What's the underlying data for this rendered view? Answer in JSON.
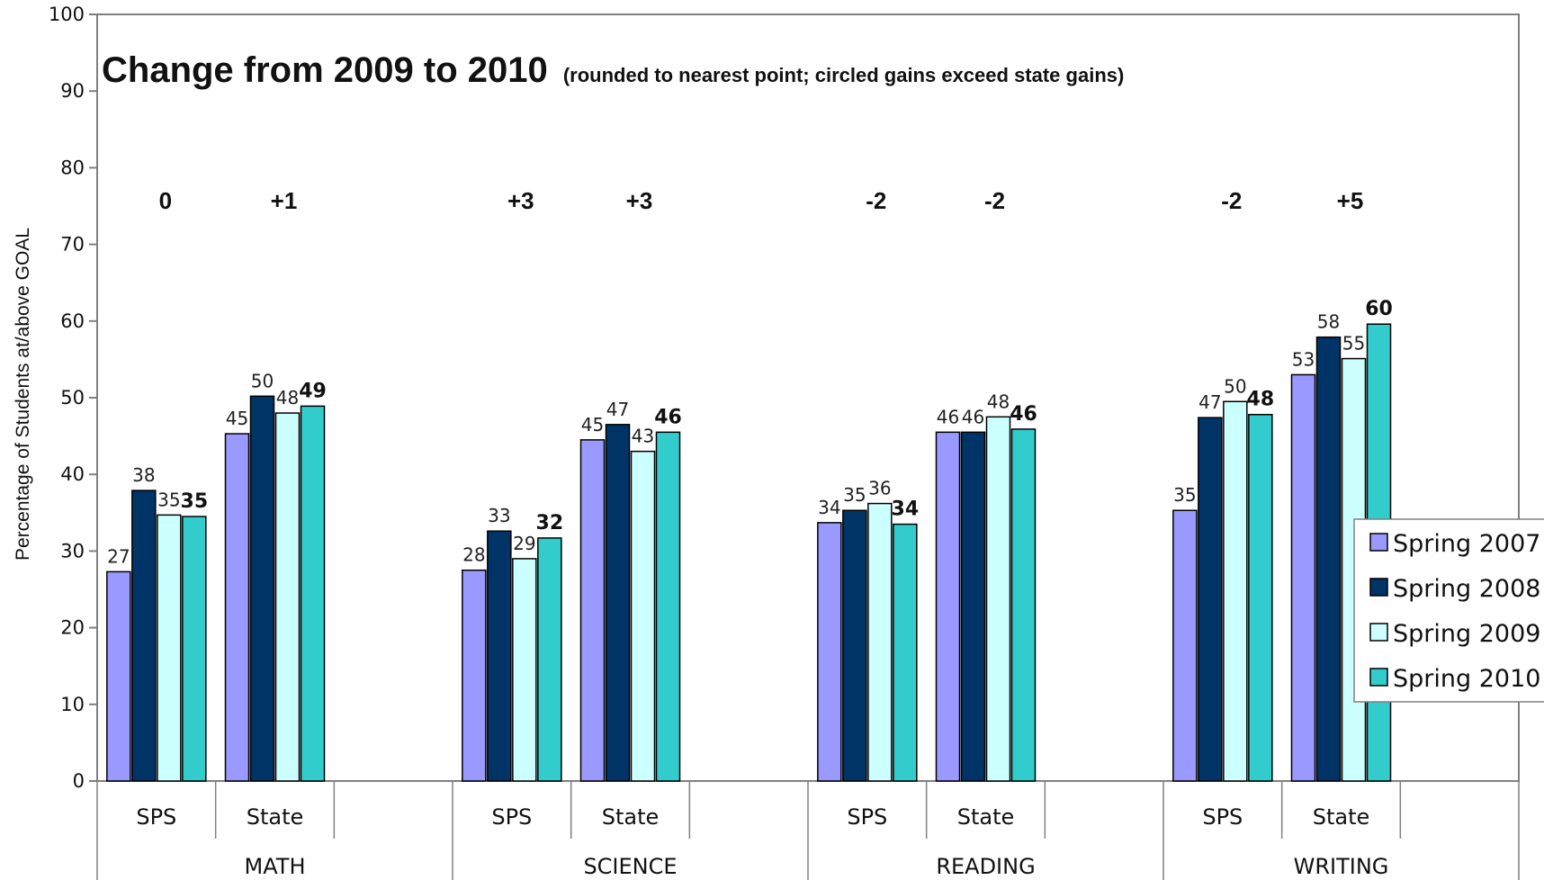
{
  "chart_data": {
    "type": "bar",
    "title": "Change from 2009 to 2010",
    "subtitle": "(rounded to nearest point; circled gains exceed state gains)",
    "ylabel": "Percentage of Students at/above GOAL",
    "ylim": [
      0,
      100
    ],
    "yticks": [
      "0",
      "10",
      "20",
      "30",
      "40",
      "50",
      "60",
      "70",
      "80",
      "90",
      "100"
    ],
    "grid": false,
    "legend_position": "right",
    "subjects": [
      "MATH",
      "SCIENCE",
      "READING",
      "WRITING"
    ],
    "groups": [
      "SPS",
      "State"
    ],
    "categories": [
      "MATH SPS",
      "MATH State",
      "SCIENCE SPS",
      "SCIENCE State",
      "READING SPS",
      "READING State",
      "WRITING SPS",
      "WRITING State"
    ],
    "changes": [
      "0",
      "+1",
      "+3",
      "+3",
      "-2",
      "-2",
      "-2",
      "+5"
    ],
    "series": [
      {
        "name": "Spring 2007",
        "color": "#9999ff",
        "values": [
          27.3,
          45.3,
          27.5,
          44.5,
          33.7,
          45.5,
          35.3,
          53.0
        ],
        "labels": [
          "27",
          "45",
          "28",
          "45",
          "34",
          "46",
          "35",
          "53"
        ]
      },
      {
        "name": "Spring 2008",
        "color": "#003366",
        "values": [
          37.9,
          50.2,
          32.6,
          46.5,
          35.3,
          45.5,
          47.4,
          57.9
        ],
        "labels": [
          "38",
          "50",
          "33",
          "47",
          "35",
          "46",
          "47",
          "58"
        ]
      },
      {
        "name": "Spring 2009",
        "color": "#ccffff",
        "values": [
          34.7,
          48.0,
          29.0,
          43.0,
          36.2,
          47.5,
          49.5,
          55.1
        ],
        "labels": [
          "35",
          "48",
          "29",
          "43",
          "36",
          "48",
          "50",
          "55"
        ]
      },
      {
        "name": "Spring 2010",
        "color": "#33cccc",
        "values": [
          34.5,
          48.9,
          31.7,
          45.5,
          33.5,
          45.9,
          47.8,
          59.6
        ],
        "labels": [
          "35",
          "49",
          "32",
          "46",
          "34",
          "46",
          "48",
          "60"
        ]
      }
    ]
  }
}
